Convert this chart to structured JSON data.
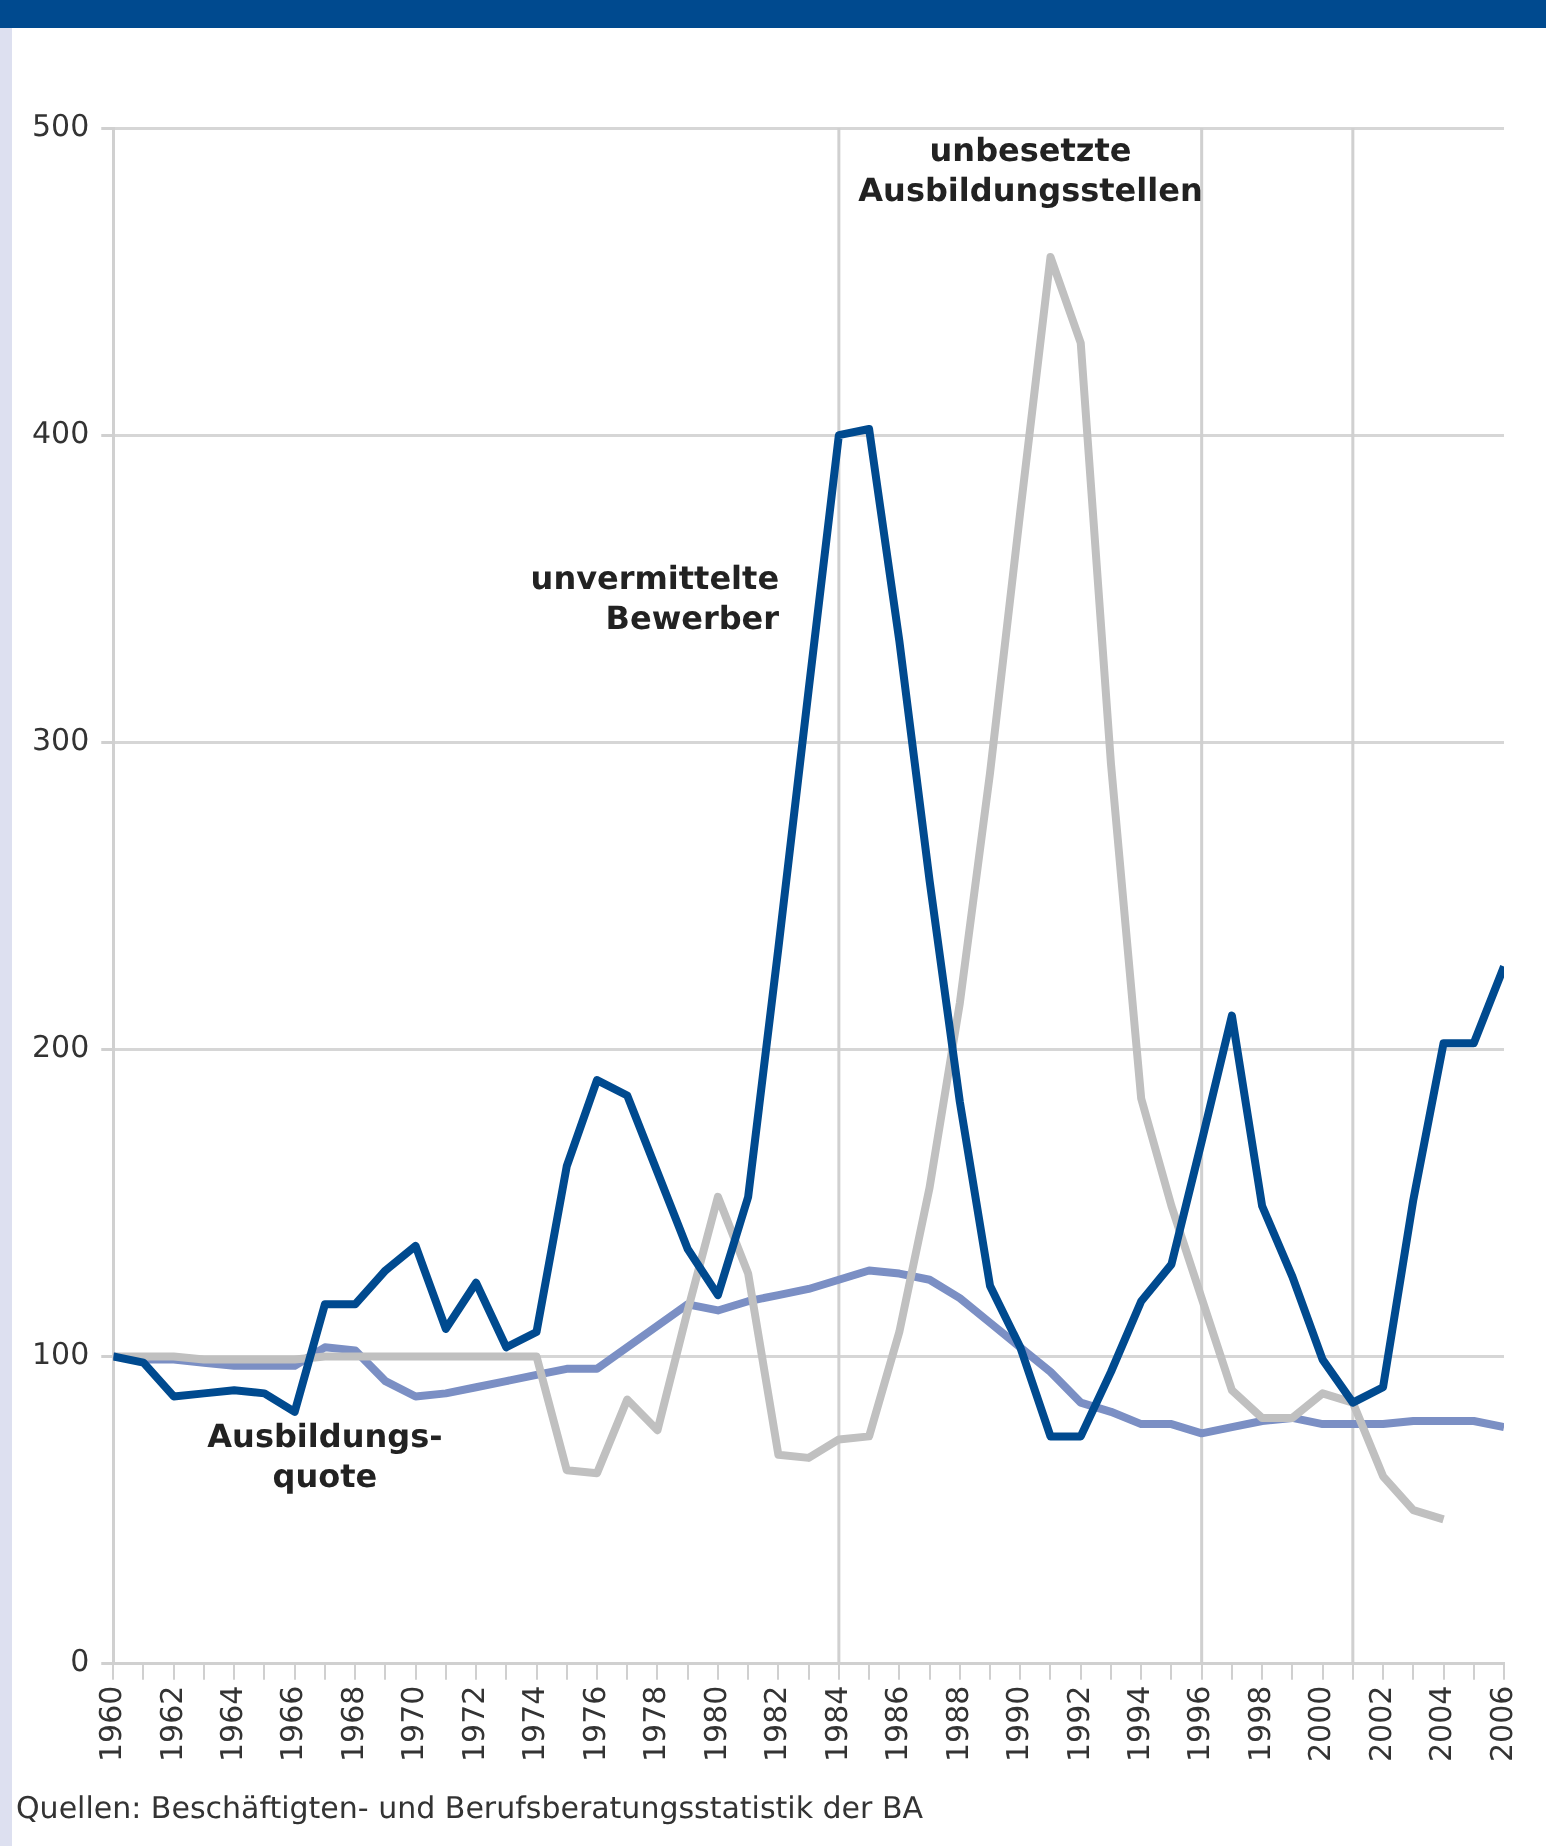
{
  "chart_data": {
    "type": "line",
    "x": [
      1960,
      1961,
      1962,
      1963,
      1964,
      1965,
      1966,
      1967,
      1968,
      1969,
      1970,
      1971,
      1972,
      1973,
      1974,
      1975,
      1976,
      1977,
      1978,
      1979,
      1980,
      1981,
      1982,
      1983,
      1984,
      1985,
      1986,
      1987,
      1988,
      1989,
      1990,
      1991,
      1992,
      1993,
      1994,
      1995,
      1996,
      1997,
      1998,
      1999,
      2000,
      2001,
      2002,
      2003,
      2004,
      2005,
      2006
    ],
    "series": [
      {
        "name": "unvermittelte\nBewerber",
        "color": "#004a8f",
        "values": [
          100,
          98,
          87,
          88,
          89,
          88,
          82,
          117,
          117,
          128,
          136,
          109,
          124,
          103,
          108,
          162,
          190,
          185,
          160,
          135,
          120,
          152,
          233,
          317,
          400,
          402,
          333,
          255,
          183,
          123,
          103,
          74,
          74,
          95,
          118,
          130,
          170,
          211,
          149,
          126,
          99,
          85,
          90,
          151,
          202,
          202,
          227
        ]
      },
      {
        "name": "unbesetzte\nAusbildungsstellen",
        "color": "#c0c0c0",
        "values": [
          100,
          100,
          100,
          99,
          99,
          99,
          99,
          100,
          100,
          100,
          100,
          100,
          100,
          100,
          100,
          63,
          62,
          86,
          76,
          115,
          152,
          127,
          68,
          67,
          73,
          74,
          108,
          155,
          215,
          290,
          375,
          458,
          430,
          293,
          184,
          149,
          119,
          89,
          80,
          80,
          88,
          85,
          61,
          50,
          47,
          null,
          null
        ]
      },
      {
        "name": "Ausbildungs-\nquote",
        "color": "#7b8fc4",
        "values": [
          100,
          99,
          99,
          98,
          97,
          97,
          97,
          103,
          102,
          92,
          87,
          88,
          90,
          92,
          94,
          96,
          96,
          103,
          110,
          117,
          115,
          118,
          120,
          122,
          125,
          128,
          127,
          125,
          119,
          111,
          103,
          95,
          85,
          82,
          78,
          78,
          75,
          77,
          79,
          80,
          78,
          78,
          78,
          79,
          79,
          79,
          77
        ]
      }
    ],
    "xlim": [
      1960,
      2006
    ],
    "xticks": [
      1960,
      {
        "value": 1961,
        "label": null
      },
      1962,
      {
        "value": 1963,
        "label": null
      },
      1964,
      {
        "value": 1965,
        "label": null
      },
      1966,
      {
        "value": 1967,
        "label": null
      },
      1968,
      {
        "value": 1969,
        "label": null
      },
      1970,
      {
        "value": 1971,
        "label": null
      },
      1972,
      {
        "value": 1973,
        "label": null
      },
      1974,
      {
        "value": 1975,
        "label": null
      },
      1976,
      {
        "value": 1977,
        "label": null
      },
      1978,
      {
        "value": 1979,
        "label": null
      },
      1980,
      {
        "value": 1981,
        "label": null
      },
      1982,
      {
        "value": 1983,
        "label": null
      },
      1984,
      {
        "value": 1985,
        "label": null
      },
      1986,
      {
        "value": 1987,
        "label": null
      },
      1988,
      {
        "value": 1989,
        "label": null
      },
      1990,
      {
        "value": 1991,
        "label": null
      },
      1992,
      {
        "value": 1993,
        "label": null
      },
      1994,
      {
        "value": 1995,
        "label": null
      },
      1996,
      {
        "value": 1997,
        "label": null
      },
      1998,
      {
        "value": 1999,
        "label": null
      },
      2000,
      {
        "value": 2001,
        "label": null
      },
      2002,
      {
        "value": 2003,
        "label": null
      },
      2004,
      {
        "value": 2005,
        "label": null
      },
      2006
    ],
    "ylim": [
      0,
      500
    ],
    "yticks": [
      0,
      100,
      200,
      300,
      400,
      500
    ],
    "grid": "y",
    "legend": false,
    "marker": "none",
    "line_style": "solid",
    "ref_lines": [
      {
        "axis": "x",
        "value": 1984,
        "color": "#d0d0d0"
      },
      {
        "axis": "x",
        "value": 1996,
        "color": "#d0d0d0"
      },
      {
        "axis": "x",
        "value": 2001,
        "color": "#d0d0d0"
      }
    ],
    "annotations": [
      "Quellen: Beschäftigten- und Berufsberatungsstatistik der BA"
    ]
  }
}
